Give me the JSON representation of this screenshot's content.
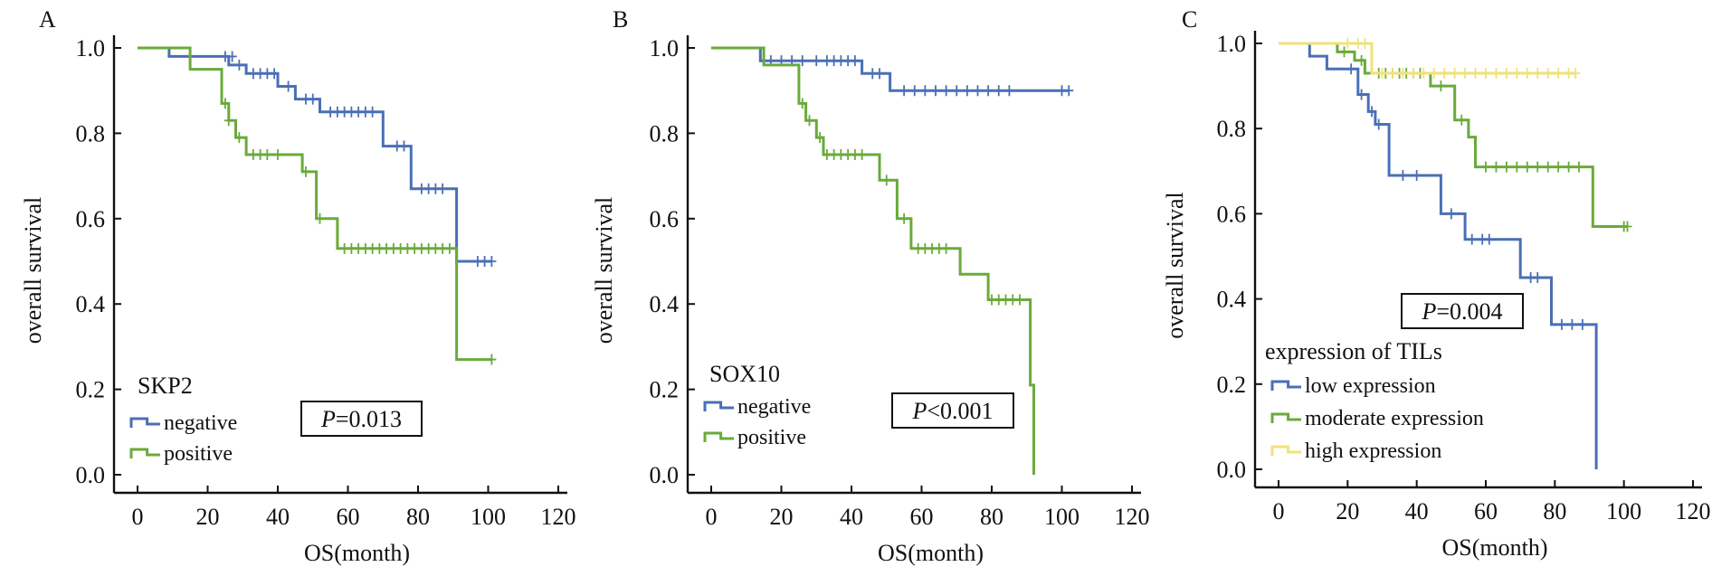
{
  "colors": {
    "blue": "#4a6fb5",
    "green": "#6aaa3a",
    "yellow": "#f0e27a",
    "axis": "#111111"
  },
  "chart_data": [
    {
      "type": "line",
      "panel_letter": "A",
      "xlabel": "OS(month)",
      "ylabel": "overall survival",
      "xlim": [
        0,
        120
      ],
      "ylim": [
        0,
        1.0
      ],
      "x_ticks": [
        "0",
        "20",
        "40",
        "60",
        "80",
        "100",
        "120"
      ],
      "y_ticks": [
        "0.0",
        "0.2",
        "0.4",
        "0.6",
        "0.8",
        "1.0"
      ],
      "legend_title": "SKP2",
      "p_prefix": "P",
      "p_rest": "=0.013",
      "series": [
        {
          "name": "negative",
          "color": "#4a6fb5",
          "steps": [
            [
              0,
              1.0
            ],
            [
              9,
              0.98
            ],
            [
              15,
              0.98
            ],
            [
              26,
              0.96
            ],
            [
              31,
              0.94
            ],
            [
              40,
              0.91
            ],
            [
              45,
              0.88
            ],
            [
              52,
              0.85
            ],
            [
              70,
              0.77
            ],
            [
              78,
              0.67
            ],
            [
              91,
              0.5
            ],
            [
              101,
              0.5
            ]
          ],
          "censored": [
            [
              25,
              0.98
            ],
            [
              27,
              0.98
            ],
            [
              29,
              0.96
            ],
            [
              33,
              0.94
            ],
            [
              35,
              0.94
            ],
            [
              37,
              0.94
            ],
            [
              39,
              0.94
            ],
            [
              43,
              0.91
            ],
            [
              48,
              0.88
            ],
            [
              50,
              0.88
            ],
            [
              55,
              0.85
            ],
            [
              57,
              0.85
            ],
            [
              59,
              0.85
            ],
            [
              61,
              0.85
            ],
            [
              63,
              0.85
            ],
            [
              65,
              0.85
            ],
            [
              67,
              0.85
            ],
            [
              74,
              0.77
            ],
            [
              76,
              0.77
            ],
            [
              81,
              0.67
            ],
            [
              83,
              0.67
            ],
            [
              85,
              0.67
            ],
            [
              87,
              0.67
            ],
            [
              97,
              0.5
            ],
            [
              99,
              0.5
            ],
            [
              101,
              0.5
            ]
          ]
        },
        {
          "name": "positive",
          "color": "#6aaa3a",
          "steps": [
            [
              0,
              1.0
            ],
            [
              15,
              0.95
            ],
            [
              24,
              0.87
            ],
            [
              26,
              0.83
            ],
            [
              28,
              0.79
            ],
            [
              31,
              0.75
            ],
            [
              47,
              0.71
            ],
            [
              51,
              0.6
            ],
            [
              57,
              0.53
            ],
            [
              91,
              0.27
            ],
            [
              101,
              0.27
            ]
          ],
          "censored": [
            [
              25,
              0.87
            ],
            [
              26,
              0.83
            ],
            [
              29,
              0.79
            ],
            [
              33,
              0.75
            ],
            [
              35,
              0.75
            ],
            [
              37,
              0.75
            ],
            [
              40,
              0.75
            ],
            [
              48,
              0.71
            ],
            [
              52,
              0.6
            ],
            [
              59,
              0.53
            ],
            [
              61,
              0.53
            ],
            [
              63,
              0.53
            ],
            [
              65,
              0.53
            ],
            [
              67,
              0.53
            ],
            [
              69,
              0.53
            ],
            [
              71,
              0.53
            ],
            [
              73,
              0.53
            ],
            [
              75,
              0.53
            ],
            [
              77,
              0.53
            ],
            [
              79,
              0.53
            ],
            [
              81,
              0.53
            ],
            [
              83,
              0.53
            ],
            [
              85,
              0.53
            ],
            [
              87,
              0.53
            ],
            [
              89,
              0.53
            ],
            [
              101,
              0.27
            ]
          ]
        }
      ]
    },
    {
      "type": "line",
      "panel_letter": "B",
      "xlabel": "OS(month)",
      "ylabel": "overall survival",
      "xlim": [
        0,
        120
      ],
      "ylim": [
        0,
        1.0
      ],
      "x_ticks": [
        "0",
        "20",
        "40",
        "60",
        "80",
        "100",
        "120"
      ],
      "y_ticks": [
        "0.0",
        "0.2",
        "0.4",
        "0.6",
        "0.8",
        "1.0"
      ],
      "legend_title": "SOX10",
      "p_prefix": "P",
      "p_rest": "<0.001",
      "series": [
        {
          "name": "negative",
          "color": "#4a6fb5",
          "steps": [
            [
              0,
              1.0
            ],
            [
              14,
              0.97
            ],
            [
              43,
              0.94
            ],
            [
              51,
              0.9
            ],
            [
              102,
              0.9
            ]
          ],
          "censored": [
            [
              17,
              0.97
            ],
            [
              20,
              0.97
            ],
            [
              23,
              0.97
            ],
            [
              26,
              0.97
            ],
            [
              30,
              0.97
            ],
            [
              33,
              0.97
            ],
            [
              35,
              0.97
            ],
            [
              37,
              0.97
            ],
            [
              39,
              0.97
            ],
            [
              41,
              0.97
            ],
            [
              46,
              0.94
            ],
            [
              48,
              0.94
            ],
            [
              55,
              0.9
            ],
            [
              58,
              0.9
            ],
            [
              61,
              0.9
            ],
            [
              64,
              0.9
            ],
            [
              67,
              0.9
            ],
            [
              70,
              0.9
            ],
            [
              73,
              0.9
            ],
            [
              76,
              0.9
            ],
            [
              79,
              0.9
            ],
            [
              82,
              0.9
            ],
            [
              85,
              0.9
            ],
            [
              100,
              0.9
            ],
            [
              102,
              0.9
            ]
          ]
        },
        {
          "name": "positive",
          "color": "#6aaa3a",
          "steps": [
            [
              0,
              1.0
            ],
            [
              15,
              0.96
            ],
            [
              25,
              0.87
            ],
            [
              27,
              0.83
            ],
            [
              30,
              0.79
            ],
            [
              32,
              0.75
            ],
            [
              48,
              0.69
            ],
            [
              53,
              0.6
            ],
            [
              57,
              0.53
            ],
            [
              71,
              0.47
            ],
            [
              79,
              0.41
            ],
            [
              91,
              0.21
            ],
            [
              92,
              0.0
            ]
          ],
          "censored": [
            [
              26,
              0.87
            ],
            [
              28,
              0.83
            ],
            [
              31,
              0.79
            ],
            [
              33,
              0.75
            ],
            [
              35,
              0.75
            ],
            [
              37,
              0.75
            ],
            [
              39,
              0.75
            ],
            [
              41,
              0.75
            ],
            [
              43,
              0.75
            ],
            [
              50,
              0.69
            ],
            [
              55,
              0.6
            ],
            [
              59,
              0.53
            ],
            [
              61,
              0.53
            ],
            [
              63,
              0.53
            ],
            [
              65,
              0.53
            ],
            [
              67,
              0.53
            ],
            [
              80,
              0.41
            ],
            [
              82,
              0.41
            ],
            [
              84,
              0.41
            ],
            [
              86,
              0.41
            ],
            [
              88,
              0.41
            ]
          ]
        }
      ]
    },
    {
      "type": "line",
      "panel_letter": "C",
      "xlabel": "OS(month)",
      "ylabel": "overall survival",
      "xlim": [
        0,
        120
      ],
      "ylim": [
        0,
        1.0
      ],
      "x_ticks": [
        "0",
        "20",
        "40",
        "60",
        "80",
        "100",
        "120"
      ],
      "y_ticks": [
        "0.0",
        "0.2",
        "0.4",
        "0.6",
        "0.8",
        "1.0"
      ],
      "legend_title": "expression of TILs",
      "p_prefix": "P",
      "p_rest": "=0.004",
      "series": [
        {
          "name": "low expression",
          "color": "#4a6fb5",
          "steps": [
            [
              0,
              1.0
            ],
            [
              9,
              0.97
            ],
            [
              14,
              0.94
            ],
            [
              23,
              0.88
            ],
            [
              26,
              0.84
            ],
            [
              28,
              0.81
            ],
            [
              32,
              0.69
            ],
            [
              47,
              0.6
            ],
            [
              54,
              0.54
            ],
            [
              70,
              0.45
            ],
            [
              79,
              0.34
            ],
            [
              92,
              0.0
            ]
          ],
          "censored": [
            [
              21,
              0.94
            ],
            [
              24,
              0.88
            ],
            [
              27,
              0.84
            ],
            [
              29,
              0.81
            ],
            [
              36,
              0.69
            ],
            [
              40,
              0.69
            ],
            [
              50,
              0.6
            ],
            [
              56,
              0.54
            ],
            [
              59,
              0.54
            ],
            [
              61,
              0.54
            ],
            [
              73,
              0.45
            ],
            [
              75,
              0.45
            ],
            [
              82,
              0.34
            ],
            [
              85,
              0.34
            ],
            [
              88,
              0.34
            ]
          ]
        },
        {
          "name": "moderate expression",
          "color": "#6aaa3a",
          "steps": [
            [
              0,
              1.0
            ],
            [
              17,
              0.98
            ],
            [
              22,
              0.96
            ],
            [
              25,
              0.93
            ],
            [
              44,
              0.9
            ],
            [
              51,
              0.82
            ],
            [
              55,
              0.78
            ],
            [
              57,
              0.71
            ],
            [
              91,
              0.57
            ],
            [
              101,
              0.57
            ]
          ],
          "censored": [
            [
              19,
              0.98
            ],
            [
              24,
              0.96
            ],
            [
              29,
              0.93
            ],
            [
              31,
              0.93
            ],
            [
              33,
              0.93
            ],
            [
              35,
              0.93
            ],
            [
              37,
              0.93
            ],
            [
              39,
              0.93
            ],
            [
              41,
              0.93
            ],
            [
              47,
              0.9
            ],
            [
              53,
              0.82
            ],
            [
              60,
              0.71
            ],
            [
              63,
              0.71
            ],
            [
              66,
              0.71
            ],
            [
              69,
              0.71
            ],
            [
              72,
              0.71
            ],
            [
              75,
              0.71
            ],
            [
              78,
              0.71
            ],
            [
              81,
              0.71
            ],
            [
              84,
              0.71
            ],
            [
              87,
              0.71
            ],
            [
              100,
              0.57
            ],
            [
              101,
              0.57
            ]
          ]
        },
        {
          "name": "high expression",
          "color": "#f0e27a",
          "steps": [
            [
              0,
              1.0
            ],
            [
              27,
              0.93
            ],
            [
              86,
              0.93
            ]
          ],
          "censored": [
            [
              20,
              1.0
            ],
            [
              23,
              1.0
            ],
            [
              25,
              1.0
            ],
            [
              30,
              0.93
            ],
            [
              33,
              0.93
            ],
            [
              36,
              0.93
            ],
            [
              39,
              0.93
            ],
            [
              42,
              0.93
            ],
            [
              45,
              0.93
            ],
            [
              48,
              0.93
            ],
            [
              51,
              0.93
            ],
            [
              54,
              0.93
            ],
            [
              57,
              0.93
            ],
            [
              60,
              0.93
            ],
            [
              63,
              0.93
            ],
            [
              66,
              0.93
            ],
            [
              69,
              0.93
            ],
            [
              72,
              0.93
            ],
            [
              75,
              0.93
            ],
            [
              78,
              0.93
            ],
            [
              81,
              0.93
            ],
            [
              84,
              0.93
            ],
            [
              86,
              0.93
            ]
          ]
        }
      ]
    }
  ]
}
